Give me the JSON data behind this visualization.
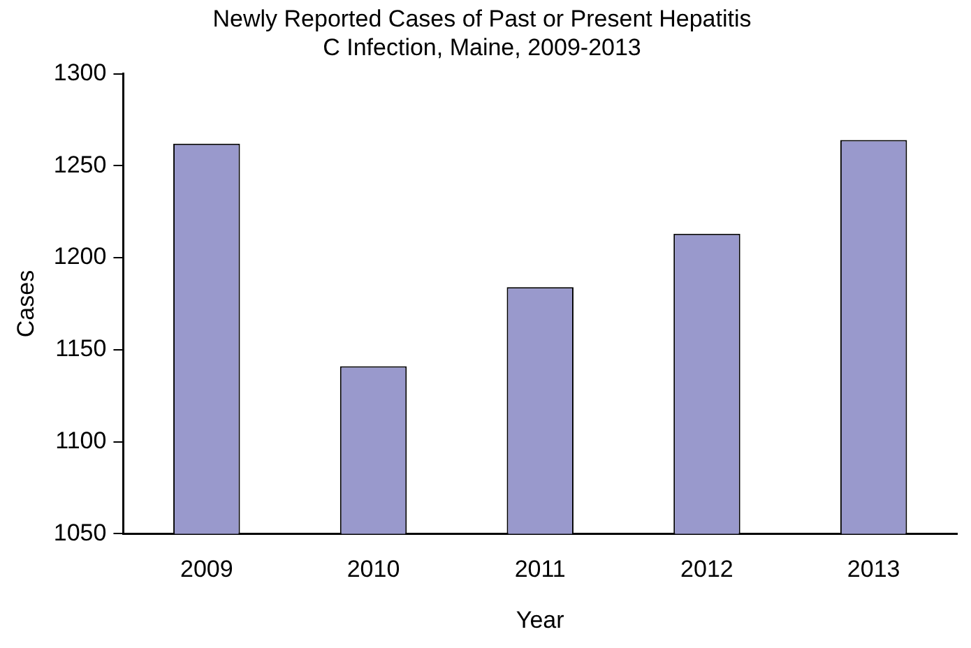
{
  "chart_data": {
    "type": "bar",
    "title": [
      "Newly Reported Cases of Past or Present Hepatitis",
      "C Infection, Maine, 2009-2013"
    ],
    "xlabel": "Year",
    "ylabel": "Cases",
    "categories": [
      "2009",
      "2010",
      "2011",
      "2012",
      "2013"
    ],
    "values": [
      1262,
      1141,
      1184,
      1213,
      1264
    ],
    "color": "#9999cc",
    "ylim": [
      1050,
      1300
    ],
    "yticks": [
      1050,
      1100,
      1150,
      1200,
      1250,
      1300
    ],
    "grid": false,
    "legend": false
  }
}
